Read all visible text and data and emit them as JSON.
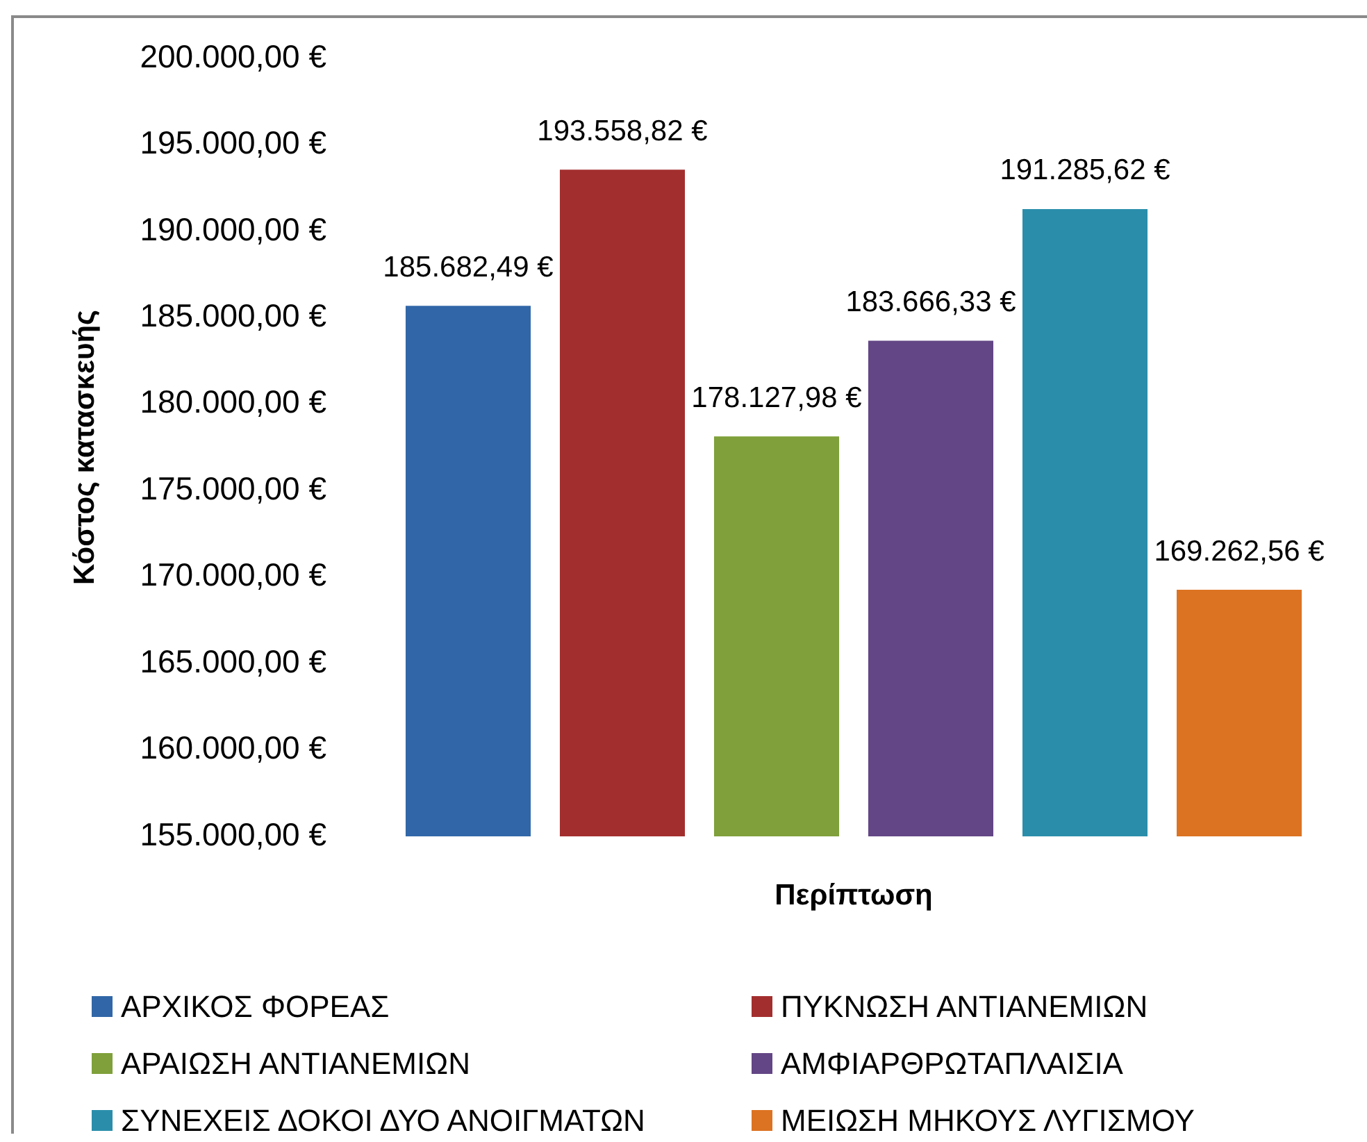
{
  "chart_data": {
    "type": "bar",
    "xlabel": "Περίπτωση",
    "ylabel": "Κόστος κατασκευής",
    "categories": [
      null
    ],
    "series": [
      {
        "name": "ΑΡΧΙΚΟΣ ΦΟΡΕΑΣ",
        "color": "#3167a8",
        "values": [
          185682.49
        ],
        "value_labels": [
          "185.682,49 €"
        ]
      },
      {
        "name": "ΠΥΚΝΩΣΗ ΑΝΤΙΑΝΕΜΙΩΝ",
        "color": "#a32e2e",
        "values": [
          193558.82
        ],
        "value_labels": [
          "193.558,82 €"
        ]
      },
      {
        "name": "ΑΡΑΙΩΣΗ ΑΝΤΙΑΝΕΜΙΩΝ",
        "color": "#7fa03a",
        "values": [
          178127.98
        ],
        "value_labels": [
          "178.127,98 €"
        ]
      },
      {
        "name": "ΑΜΦΙΑΡΘΡΩΤΑΠΛΑΙΣΙΑ",
        "color": "#634685",
        "values": [
          183666.33
        ],
        "value_labels": [
          "183.666,33 €"
        ]
      },
      {
        "name": "ΣΥΝΕΧΕΙΣ ΔΟΚΟΙ ΔΥΟ ΑΝΟΙΓΜΑΤΩΝ",
        "color": "#2a8eab",
        "values": [
          191285.62
        ],
        "value_labels": [
          "191.285,62 €"
        ]
      },
      {
        "name": "ΜΕΙΩΣΗ ΜΗΚΟΥΣ ΛΥΓΙΣΜΟΥ",
        "color": "#dc7322",
        "values": [
          169262.56
        ],
        "value_labels": [
          "169.262,56 €"
        ]
      }
    ],
    "ylim": [
      155000,
      200000
    ],
    "yticks": [
      {
        "value": 155000,
        "label": "155.000,00 €"
      },
      {
        "value": 160000,
        "label": "160.000,00 €"
      },
      {
        "value": 165000,
        "label": "165.000,00 €"
      },
      {
        "value": 170000,
        "label": "170.000,00 €"
      },
      {
        "value": 175000,
        "label": "175.000,00 €"
      },
      {
        "value": 180000,
        "label": "180.000,00 €"
      },
      {
        "value": 185000,
        "label": "185.000,00 €"
      },
      {
        "value": 190000,
        "label": "190.000,00 €"
      },
      {
        "value": 195000,
        "label": "195.000,00 €"
      },
      {
        "value": 200000,
        "label": "200.000,00 €"
      }
    ],
    "grid": false,
    "legend": "bottom"
  }
}
